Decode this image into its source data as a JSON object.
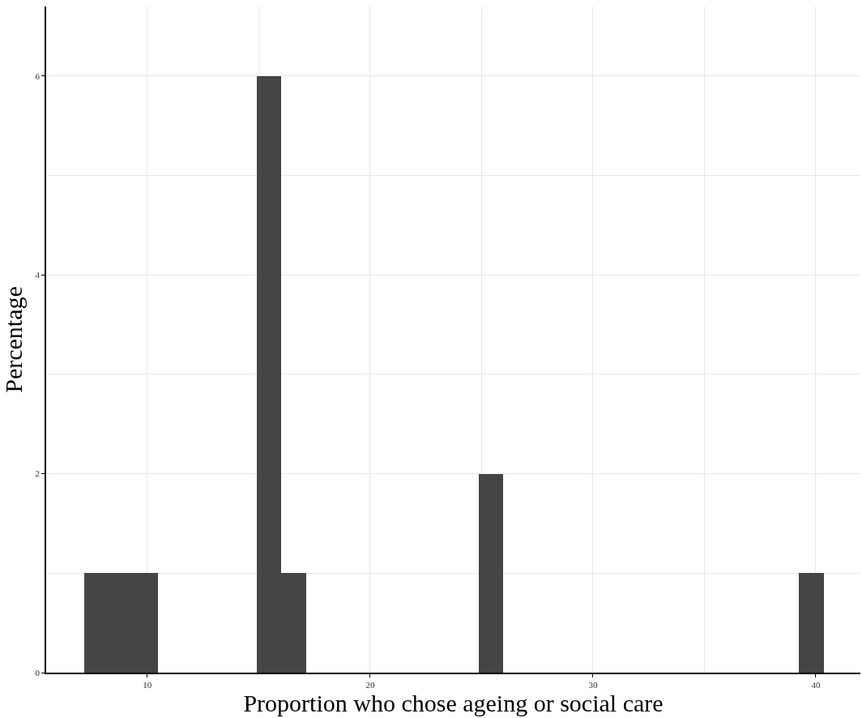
{
  "chart_data": {
    "type": "histogram",
    "xlabel": "Proportion who chose ageing or social care",
    "ylabel": "Percentage",
    "bins": [
      7.17,
      8.28,
      9.38,
      10.49,
      11.59,
      12.7,
      13.81,
      14.91,
      16.02,
      17.12,
      18.23,
      19.34,
      20.44,
      21.55,
      22.65,
      23.76,
      24.87,
      25.97,
      27.08,
      28.18,
      29.29,
      30.4,
      31.5,
      32.61,
      33.71,
      34.82,
      35.93,
      37.03,
      38.14,
      39.24,
      40.35
    ],
    "values": [
      1,
      1,
      1,
      0,
      0,
      0,
      0,
      6,
      1,
      0,
      0,
      0,
      0,
      0,
      0,
      0,
      2,
      0,
      0,
      0,
      0,
      0,
      0,
      0,
      0,
      0,
      0,
      0,
      0,
      1
    ],
    "color": "#454545",
    "xlim": [
      5.46,
      42.0
    ],
    "ylim": [
      0,
      6.7
    ],
    "xticks": [
      10,
      20,
      30,
      40
    ],
    "yticks": [
      0,
      2,
      4,
      6
    ],
    "grid": true
  }
}
